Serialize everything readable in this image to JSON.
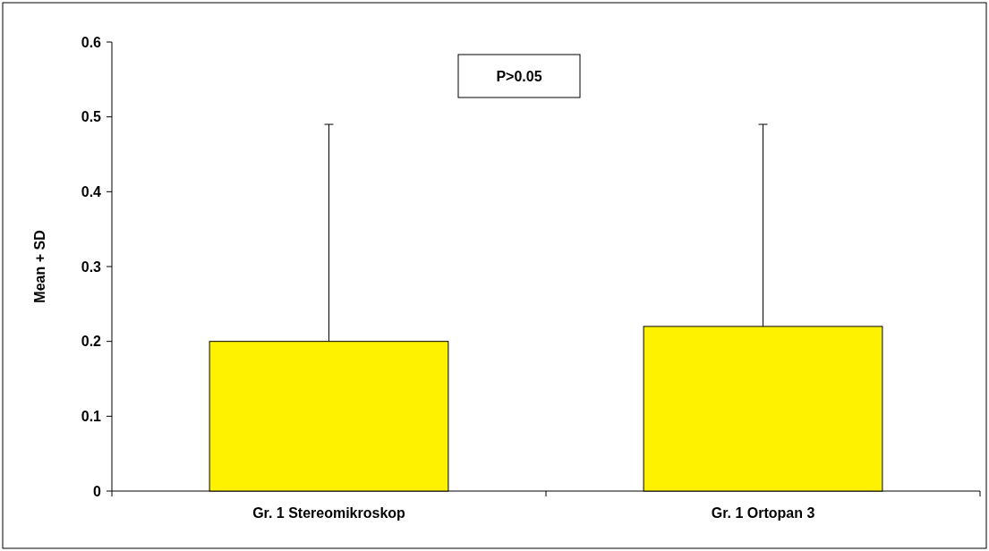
{
  "chart_data": {
    "type": "bar",
    "ylabel": "Mean + SD",
    "categories": [
      "Gr. 1 Stereomikroskop",
      "Gr. 1 Ortopan 3"
    ],
    "values": [
      0.2,
      0.22
    ],
    "color": "#fff200",
    "errors": [
      [
        0.2,
        0.49
      ],
      [
        0.22,
        0.49
      ]
    ],
    "ylim": [
      0,
      0.6
    ],
    "yticks": [
      0,
      0.1,
      0.2,
      0.3,
      0.4,
      0.5,
      0.6
    ],
    "annotations": [
      "P>0.05"
    ]
  }
}
